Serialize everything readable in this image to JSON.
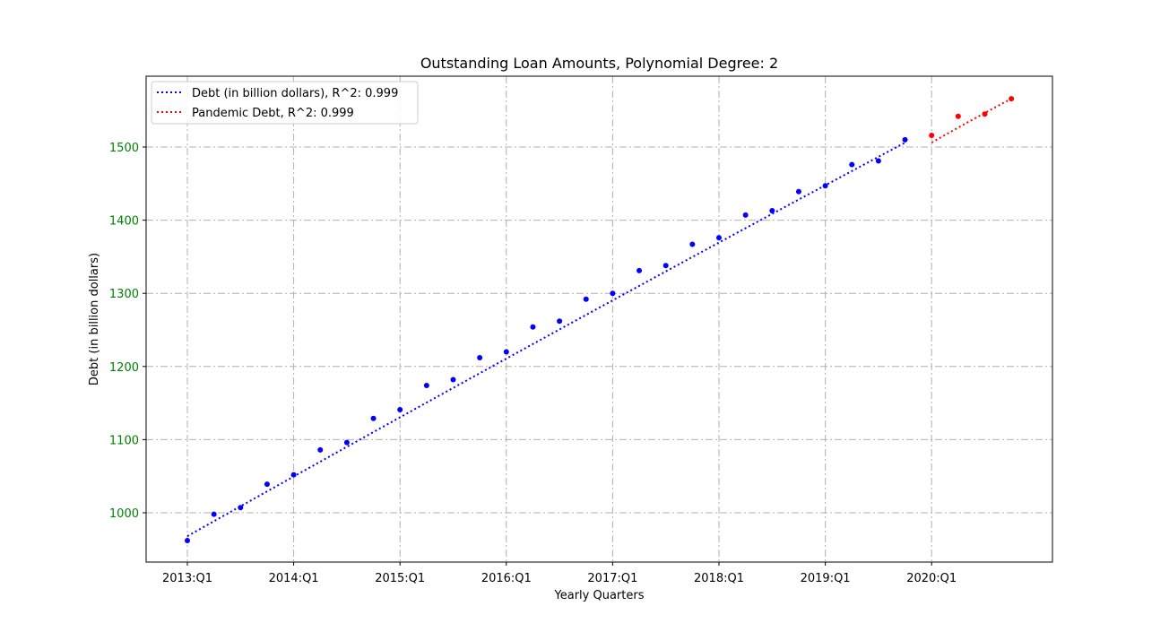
{
  "chart_data": {
    "type": "scatter",
    "title": "Outstanding Loan Amounts, Polynomial Degree: 2",
    "xlabel": "Yearly Quarters",
    "ylabel": "Debt (in billion dollars)",
    "x_tick_labels": [
      "2013:Q1",
      "2014:Q1",
      "2015:Q1",
      "2016:Q1",
      "2017:Q1",
      "2018:Q1",
      "2019:Q1",
      "2020:Q1"
    ],
    "y_tick_labels": [
      "1000",
      "1100",
      "1200",
      "1300",
      "1400",
      "1500"
    ],
    "ylim": [
      935,
      1590
    ],
    "grid": true,
    "legend_position": "top-left",
    "y_tick_color": "#008000",
    "series": [
      {
        "name": "Debt (in billion dollars), R^2: 0.999",
        "color": "#0000ff",
        "x": [
          "2013:Q1",
          "2013:Q2",
          "2013:Q3",
          "2013:Q4",
          "2014:Q1",
          "2014:Q2",
          "2014:Q3",
          "2014:Q4",
          "2015:Q1",
          "2015:Q2",
          "2015:Q3",
          "2015:Q4",
          "2016:Q1",
          "2016:Q2",
          "2016:Q3",
          "2016:Q4",
          "2017:Q1",
          "2017:Q2",
          "2017:Q3",
          "2017:Q4",
          "2018:Q1",
          "2018:Q2",
          "2018:Q3",
          "2018:Q4",
          "2019:Q1",
          "2019:Q2",
          "2019:Q3",
          "2019:Q4"
        ],
        "values": [
          962,
          998,
          1007,
          1039,
          1052,
          1086,
          1096,
          1129,
          1141,
          1174,
          1182,
          1212,
          1220,
          1254,
          1262,
          1292,
          1300,
          1331,
          1338,
          1367,
          1376,
          1407,
          1413,
          1439,
          1447,
          1476,
          1481,
          1510
        ],
        "fit_start": 968,
        "fit_end": 1506
      },
      {
        "name": "Pandemic Debt, R^2: 0.999",
        "color": "#ff0000",
        "x": [
          "2020:Q1",
          "2020:Q2",
          "2020:Q3",
          "2020:Q4"
        ],
        "values": [
          1516,
          1542,
          1545,
          1566
        ],
        "fit_start": 1506,
        "fit_end": 1566
      }
    ]
  }
}
